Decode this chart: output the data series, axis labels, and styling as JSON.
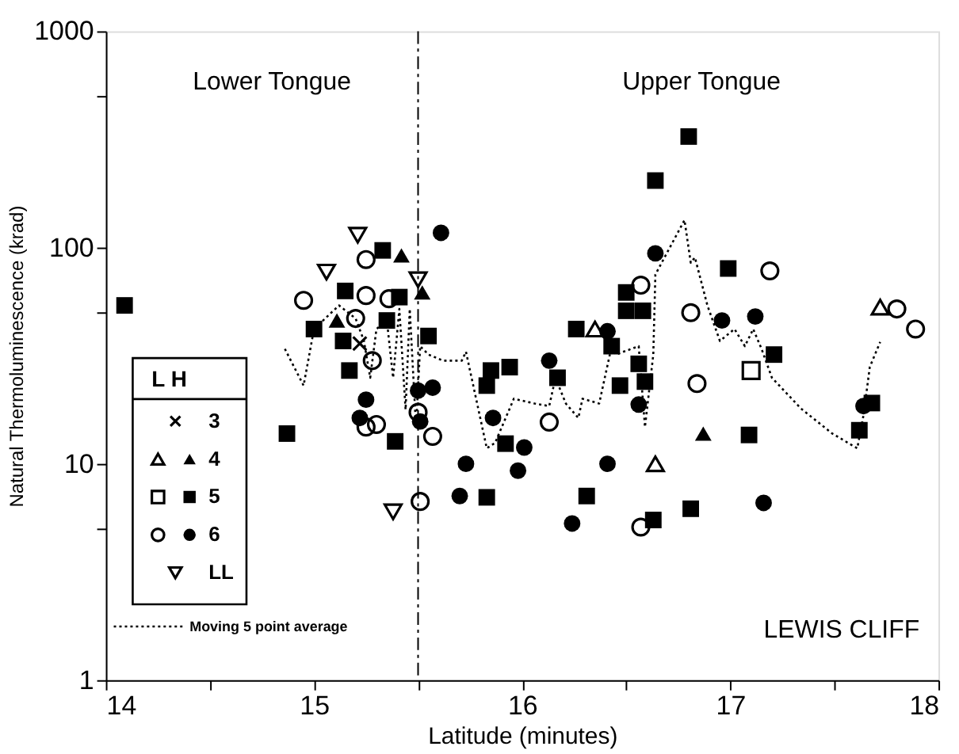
{
  "chart_data": {
    "type": "scatter",
    "xlabel": "Latitude (minutes)",
    "ylabel": "Natural Thermoluminescence (krad)",
    "legend_title": "L H",
    "legend": "bottom left",
    "log": "y",
    "grid": false,
    "xlim": [
      14,
      18
    ],
    "xticks": [
      14,
      {
        "value": 14.5,
        "label": null
      },
      15,
      {
        "value": 15.5,
        "label": null
      },
      16,
      {
        "value": 16.5,
        "label": null
      },
      17,
      {
        "value": 17.5,
        "label": null
      },
      18
    ],
    "ylim": [
      1,
      1000
    ],
    "yticks": [
      1,
      {
        "value": 5,
        "label": null
      },
      10,
      {
        "value": 50,
        "label": null
      },
      100,
      {
        "value": 500,
        "label": null
      },
      1000
    ],
    "ref_lines": [
      {
        "axis": "x",
        "value": 15.5,
        "label": null,
        "color": "#000000",
        "line_style": "dashed"
      }
    ],
    "annotations": [
      "Lower Tongue",
      "Upper Tongue",
      "LEWIS CLIFF"
    ],
    "series": [
      {
        "name": "3",
        "color": "#000000",
        "marker": "cross",
        "x": [
          15.22
        ],
        "values": [
          36
        ]
      },
      {
        "color": "#000000",
        "marker": "triangle-open",
        "x": [
          16.35,
          16.64,
          17.72
        ],
        "values": [
          42,
          10,
          53
        ]
      },
      {
        "name": "4",
        "color": "#000000",
        "marker": "triangle",
        "x": [
          15.11,
          15.42,
          15.52,
          16.87
        ],
        "values": [
          46,
          92,
          62,
          13.8
        ]
      },
      {
        "color": "#000000",
        "marker": "square-open",
        "x": [
          17.1
        ],
        "values": [
          27
        ]
      },
      {
        "name": "5",
        "color": "#000000",
        "marker": "square",
        "x": [
          14.09,
          14.87,
          15.0,
          15.15,
          15.14,
          15.17,
          15.33,
          15.35,
          15.39,
          15.41,
          15.55,
          15.83,
          15.85,
          15.94,
          15.83,
          15.92,
          16.17,
          16.26,
          16.31,
          16.43,
          16.47,
          16.5,
          16.5,
          16.58,
          16.56,
          16.59,
          16.64,
          16.63,
          16.8,
          16.81,
          16.99,
          17.09,
          17.21,
          17.62,
          17.68
        ],
        "values": [
          54,
          13.8,
          42,
          63,
          37,
          27,
          97,
          46,
          12.7,
          59,
          39,
          23,
          27,
          28,
          7,
          12.4,
          25,
          42,
          7.1,
          35,
          23,
          62,
          51,
          51,
          29,
          24,
          204,
          5.5,
          326,
          6.2,
          80,
          13.6,
          32,
          14.3,
          19.1
        ]
      },
      {
        "color": "#000000",
        "marker": "circle-open",
        "x": [
          14.95,
          15.25,
          15.25,
          15.2,
          15.28,
          15.36,
          15.25,
          15.3,
          15.5,
          15.57,
          15.51,
          16.13,
          16.57,
          16.57,
          16.81,
          16.84,
          17.19,
          17.8,
          17.89
        ],
        "values": [
          57,
          88,
          60,
          47,
          30,
          58,
          14.8,
          15.2,
          17.3,
          13.4,
          6.7,
          15.6,
          67,
          5.1,
          50,
          23.5,
          78,
          52,
          42
        ]
      },
      {
        "name": "6",
        "color": "#000000",
        "marker": "circle",
        "x": [
          15.25,
          15.22,
          15.5,
          15.57,
          15.51,
          15.61,
          15.73,
          15.7,
          15.86,
          16.01,
          15.98,
          16.13,
          16.24,
          16.41,
          16.41,
          16.56,
          16.64,
          16.96,
          17.12,
          17.16,
          17.64
        ],
        "values": [
          19.8,
          16.3,
          21.8,
          22.5,
          15.7,
          117,
          10,
          7.1,
          16.3,
          11.9,
          9.3,
          30,
          5.3,
          41,
          10,
          18.8,
          94,
          46,
          48,
          6.6,
          18.5
        ]
      },
      {
        "name": "LL",
        "color": "#000000",
        "marker": "triangle-down-open",
        "x": [
          15.21,
          15.06,
          15.5,
          15.38
        ],
        "values": [
          114,
          77,
          71,
          6.0
        ]
      },
      {
        "name": "Moving 5 point average",
        "type": "line",
        "color": "#000000",
        "marker": "none",
        "line_style": "dotted",
        "x": [
          14.86,
          14.95,
          15.0,
          15.12,
          15.2,
          15.24,
          15.27,
          15.3,
          15.35,
          15.38,
          15.41,
          15.44,
          15.46,
          15.49,
          15.51,
          15.55,
          15.62,
          15.71,
          15.73,
          15.83,
          15.87,
          15.96,
          16.06,
          16.13,
          16.16,
          16.21,
          16.27,
          16.29,
          16.37,
          16.43,
          16.45,
          16.56,
          16.59,
          16.63,
          16.64,
          16.78,
          16.81,
          16.83,
          16.89,
          16.95,
          17.02,
          17.07,
          17.11,
          17.15,
          17.2,
          17.34,
          17.49,
          17.61,
          17.64,
          17.67,
          17.72
        ],
        "values": [
          34,
          23,
          42,
          54,
          47,
          37,
          25,
          42,
          46,
          25,
          52,
          17.8,
          52,
          14.8,
          35,
          32,
          30,
          30,
          33,
          11.8,
          12.5,
          20,
          19,
          18.5,
          25,
          19,
          16.3,
          20,
          19,
          35,
          32,
          35,
          14.8,
          32,
          75,
          134,
          85,
          90,
          54,
          37,
          42,
          35,
          42,
          34,
          25,
          18,
          13.8,
          11.8,
          16.8,
          28,
          36.6
        ]
      }
    ]
  }
}
